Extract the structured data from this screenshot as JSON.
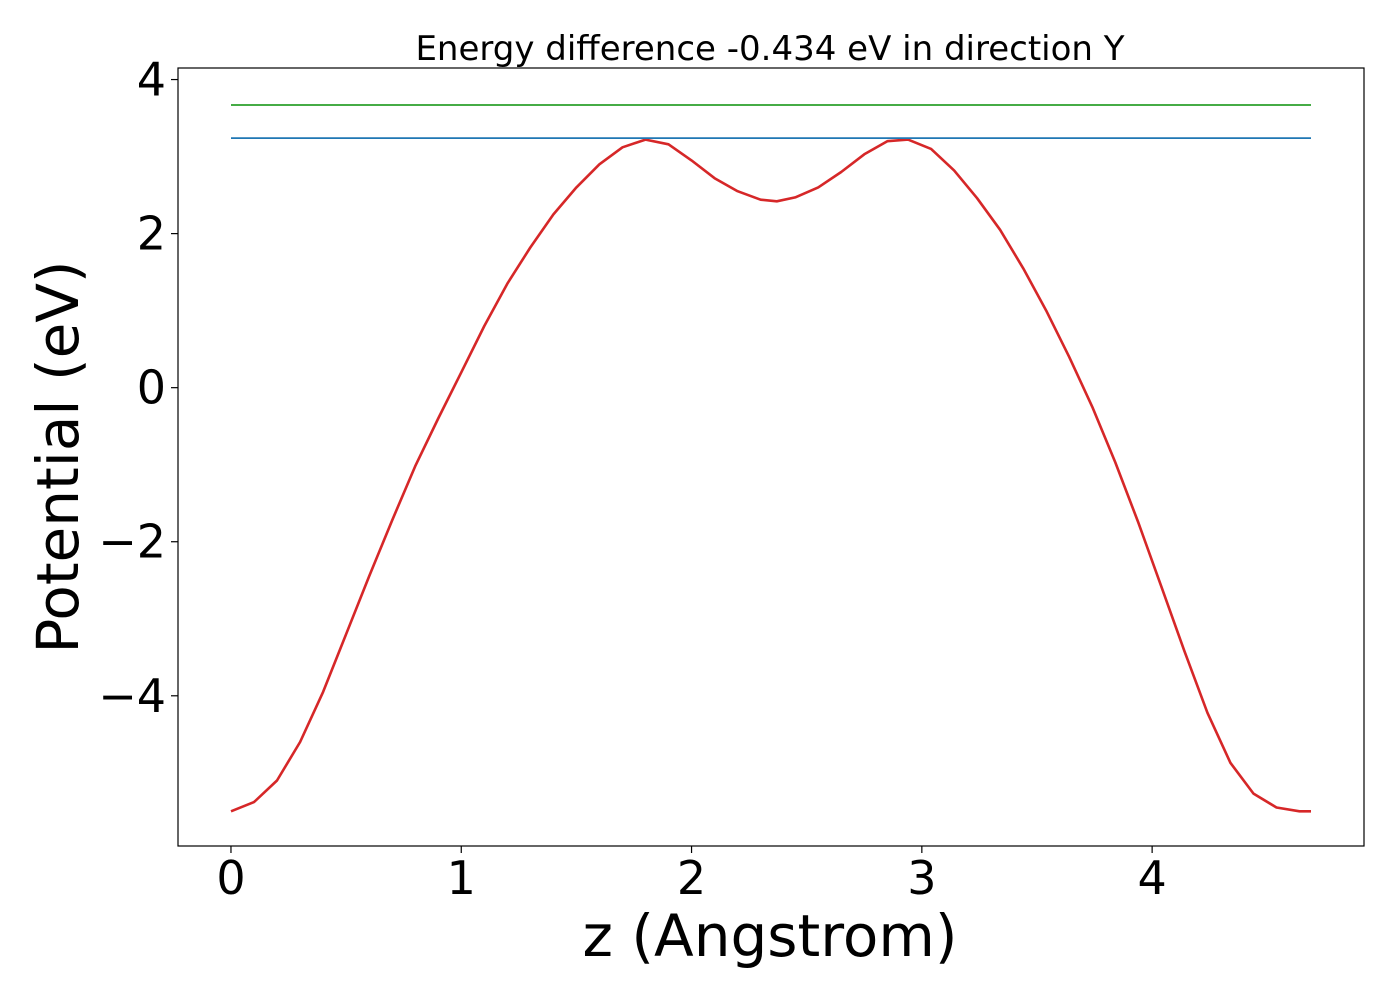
{
  "chart_data": {
    "type": "line",
    "title": "Energy difference -0.434 eV in direction Y",
    "xlabel": "z (Angstrom)",
    "ylabel": "Potential (eV)",
    "xlim": [
      -0.23,
      4.92
    ],
    "ylim": [
      -5.95,
      4.15
    ],
    "xticks": [
      0,
      1,
      2,
      3,
      4
    ],
    "yticks": [
      -4,
      -2,
      0,
      2,
      4
    ],
    "grid": false,
    "series": [
      {
        "color": "#d62728",
        "x": [
          0,
          0.1,
          0.2,
          0.3,
          0.4,
          0.5,
          0.6,
          0.7,
          0.8,
          0.9,
          1.0,
          1.1,
          1.2,
          1.3,
          1.4,
          1.5,
          1.6,
          1.7,
          1.8,
          1.9,
          2.0,
          2.1,
          2.2,
          2.3,
          2.37,
          2.45,
          2.55,
          2.65,
          2.75,
          2.85,
          2.94,
          3.04,
          3.14,
          3.24,
          3.34,
          3.44,
          3.54,
          3.64,
          3.74,
          3.84,
          3.94,
          4.04,
          4.14,
          4.24,
          4.34,
          4.44,
          4.54,
          4.64,
          4.69
        ],
        "values": [
          -5.5,
          -5.38,
          -5.1,
          -4.6,
          -3.95,
          -3.2,
          -2.45,
          -1.72,
          -1.02,
          -0.4,
          0.2,
          0.8,
          1.35,
          1.82,
          2.25,
          2.6,
          2.9,
          3.12,
          3.22,
          3.16,
          2.95,
          2.72,
          2.55,
          2.44,
          2.42,
          2.47,
          2.6,
          2.8,
          3.03,
          3.2,
          3.22,
          3.1,
          2.82,
          2.46,
          2.05,
          1.55,
          1.0,
          0.4,
          -0.25,
          -0.97,
          -1.75,
          -2.58,
          -3.42,
          -4.22,
          -4.87,
          -5.27,
          -5.45,
          -5.5,
          -5.5
        ]
      },
      {
        "color": "#1f77b4",
        "x": [
          0,
          4.69
        ],
        "values": [
          3.24,
          3.24
        ]
      },
      {
        "color": "#2ca02c",
        "x": [
          0,
          4.69
        ],
        "values": [
          3.67,
          3.67
        ]
      }
    ]
  }
}
